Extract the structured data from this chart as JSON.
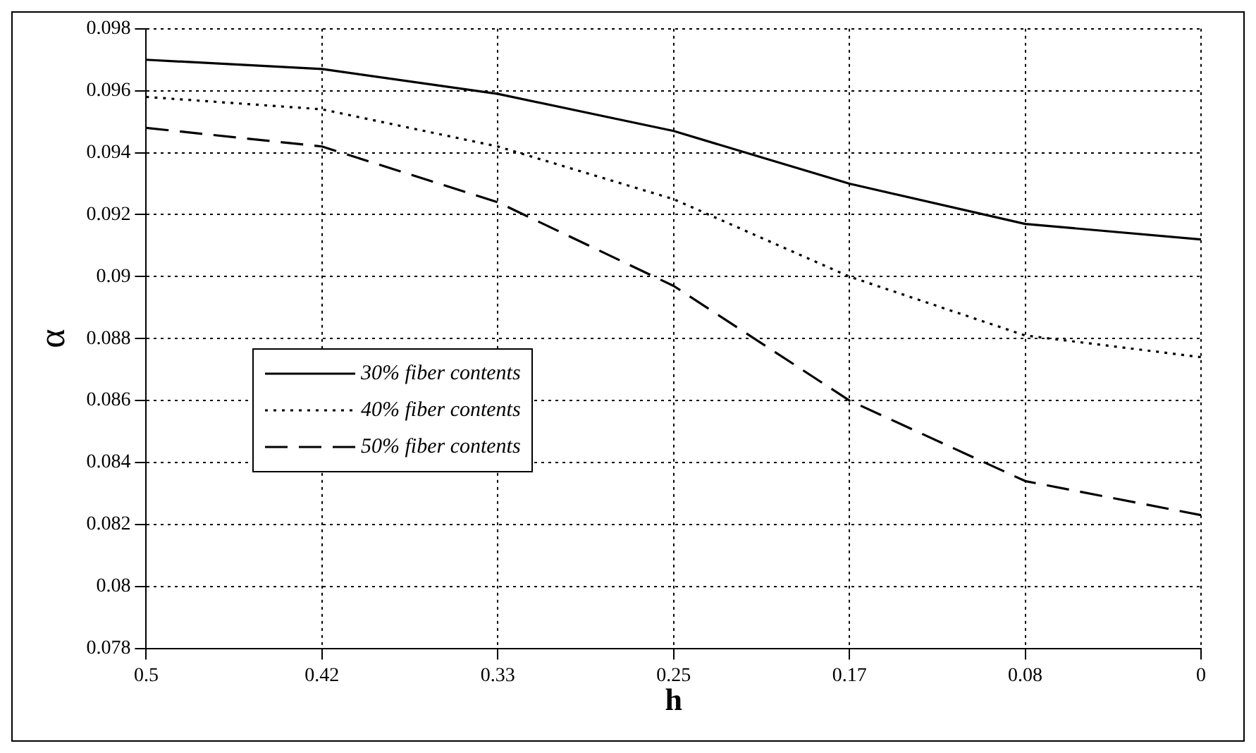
{
  "chart_data": {
    "type": "line",
    "xlabel": "h",
    "ylabel": "α",
    "categories": [
      "0.5",
      "0.42",
      "0.33",
      "0.25",
      "0.17",
      "0.08",
      "0"
    ],
    "series": [
      {
        "name": "30% fiber contents",
        "color": "#000000",
        "line_style": "solid",
        "values": [
          0.097,
          0.0967,
          0.0959,
          0.0947,
          0.093,
          0.0917,
          0.0912
        ]
      },
      {
        "name": "40% fiber contents",
        "color": "#000000",
        "line_style": "dotted",
        "values": [
          0.0958,
          0.0954,
          0.0942,
          0.0925,
          0.09,
          0.0881,
          0.0874
        ]
      },
      {
        "name": "50% fiber contents",
        "color": "#000000",
        "line_style": "dashed",
        "values": [
          0.0948,
          0.0942,
          0.0924,
          0.0897,
          0.086,
          0.0834,
          0.0823
        ]
      }
    ],
    "ylim": [
      0.078,
      0.098
    ],
    "yticks": [
      0.078,
      0.08,
      0.082,
      0.084,
      0.086,
      0.088,
      0.09,
      0.092,
      0.094,
      0.096,
      0.098
    ],
    "grid": true,
    "legend": "left",
    "marker": "none"
  }
}
